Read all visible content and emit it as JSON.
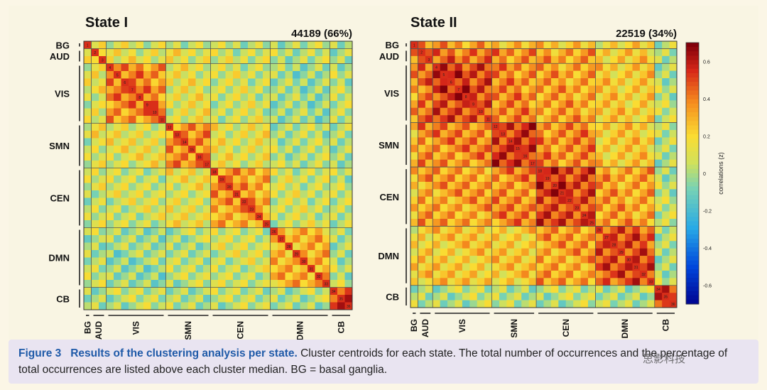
{
  "chart_data": [
    {
      "type": "heatmap",
      "title": "State I",
      "count_label": "44189 (66%)",
      "networks": [
        "BG",
        "AUD",
        "VIS",
        "SMN",
        "CEN",
        "DMN",
        "CB"
      ],
      "network_sizes": [
        1,
        2,
        8,
        6,
        8,
        8,
        3
      ],
      "mean_corr": 0.15,
      "block_means": [
        [
          0.2,
          0.15,
          0.1,
          0.1,
          0.05,
          0.05,
          0.05
        ],
        [
          0.15,
          0.35,
          0.15,
          0.15,
          0.1,
          0.05,
          0.05
        ],
        [
          0.1,
          0.15,
          0.4,
          0.15,
          0.1,
          0.0,
          0.05
        ],
        [
          0.1,
          0.15,
          0.15,
          0.4,
          0.15,
          0.05,
          0.05
        ],
        [
          0.05,
          0.1,
          0.1,
          0.15,
          0.35,
          0.1,
          0.05
        ],
        [
          0.05,
          0.05,
          0.0,
          0.05,
          0.1,
          0.3,
          0.05
        ],
        [
          0.05,
          0.05,
          0.05,
          0.05,
          0.05,
          0.05,
          0.5
        ]
      ]
    },
    {
      "type": "heatmap",
      "title": "State II",
      "count_label": "22519 (34%)",
      "networks": [
        "BG",
        "AUD",
        "VIS",
        "SMN",
        "CEN",
        "DMN",
        "CB"
      ],
      "network_sizes": [
        1,
        2,
        8,
        6,
        8,
        8,
        3
      ],
      "block_means": [
        [
          0.3,
          0.4,
          0.35,
          0.3,
          0.25,
          0.2,
          0.05
        ],
        [
          0.4,
          0.5,
          0.45,
          0.4,
          0.35,
          0.25,
          0.05
        ],
        [
          0.35,
          0.45,
          0.55,
          0.4,
          0.35,
          0.25,
          0.05
        ],
        [
          0.3,
          0.4,
          0.4,
          0.55,
          0.4,
          0.25,
          0.05
        ],
        [
          0.25,
          0.35,
          0.35,
          0.4,
          0.55,
          0.35,
          0.05
        ],
        [
          0.2,
          0.25,
          0.25,
          0.25,
          0.35,
          0.5,
          0.05
        ],
        [
          0.05,
          0.05,
          0.05,
          0.05,
          0.05,
          0.05,
          0.6
        ]
      ]
    }
  ],
  "colorbar": {
    "label": "correlations (z)",
    "ticks": [
      "0.6",
      "0.4",
      "0.2",
      "0",
      "-0.2",
      "-0.4",
      "-0.6"
    ],
    "range": [
      -0.7,
      0.7
    ]
  },
  "caption": {
    "figure": "Figure 3",
    "title": "Results of the clustering analysis per state.",
    "text": " Cluster centroids for each state. The total number of occurrences and the percentage of total occurrences are listed above each cluster median. BG = basal ganglia."
  },
  "watermark": "思影科技"
}
